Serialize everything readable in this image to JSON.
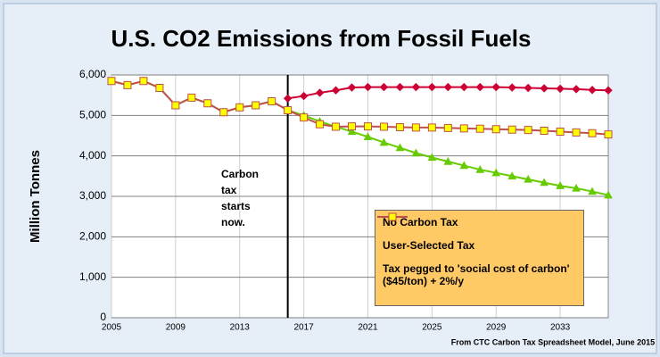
{
  "chart_data": {
    "type": "line",
    "title": "U.S. CO2 Emissions from Fossil Fuels",
    "y_label": "Million Tonnes",
    "source": "From CTC Carbon Tax Spreadsheet Model, June 2015",
    "annotation": {
      "lines": [
        "Carbon",
        "tax",
        "starts",
        "now."
      ],
      "x": 2016
    },
    "x": [
      2005,
      2006,
      2007,
      2008,
      2009,
      2010,
      2011,
      2012,
      2013,
      2014,
      2015,
      2016,
      2017,
      2018,
      2019,
      2020,
      2021,
      2022,
      2023,
      2024,
      2025,
      2026,
      2027,
      2028,
      2029,
      2030,
      2031,
      2032,
      2033,
      2034,
      2035,
      2036
    ],
    "xlim": [
      2005,
      2036
    ],
    "xticks": [
      2005,
      2009,
      2013,
      2017,
      2021,
      2025,
      2029,
      2033
    ],
    "ylim": [
      0,
      6000
    ],
    "yticks": [
      0,
      {
        "value": 1000,
        "label": "1,000"
      },
      {
        "value": 2000,
        "label": "2,000"
      },
      {
        "value": 3000,
        "label": "3,000"
      },
      {
        "value": 4000,
        "label": "4,000"
      },
      {
        "value": 5000,
        "label": "5,000"
      },
      {
        "value": 6000,
        "label": "6,000"
      }
    ],
    "grid": true,
    "series": [
      {
        "name": "User-Selected Tax",
        "color": "#66cc00",
        "marker": "triangle",
        "marker_color": "#66cc00",
        "values": [
          5850,
          5750,
          5850,
          5680,
          5250,
          5440,
          5300,
          5080,
          5200,
          5250,
          5350,
          5130,
          5000,
          4850,
          4720,
          4600,
          4470,
          4330,
          4200,
          4070,
          3960,
          3860,
          3760,
          3660,
          3580,
          3500,
          3420,
          3340,
          3260,
          3200,
          3120,
          3030
        ]
      },
      {
        "name": "Tax pegged to 'social cost of carbon' ($45/ton) + 2%/y",
        "color": "#c0504d",
        "marker": "square",
        "marker_color": "#ffff00",
        "values": [
          5850,
          5750,
          5850,
          5680,
          5250,
          5440,
          5300,
          5080,
          5200,
          5250,
          5350,
          5130,
          4950,
          4780,
          4720,
          4730,
          4730,
          4720,
          4710,
          4700,
          4700,
          4690,
          4680,
          4670,
          4660,
          4650,
          4640,
          4620,
          4600,
          4580,
          4560,
          4530
        ]
      },
      {
        "name": "No Carbon Tax",
        "color": "#cc0033",
        "marker": "diamond",
        "marker_color": "#cc0033",
        "values": [
          null,
          null,
          null,
          null,
          null,
          null,
          null,
          null,
          null,
          null,
          null,
          5420,
          5480,
          5560,
          5620,
          5690,
          5700,
          5700,
          5700,
          5700,
          5700,
          5700,
          5700,
          5700,
          5700,
          5690,
          5680,
          5670,
          5660,
          5650,
          5630,
          5620
        ]
      }
    ],
    "legend_order": [
      2,
      0,
      1
    ]
  }
}
